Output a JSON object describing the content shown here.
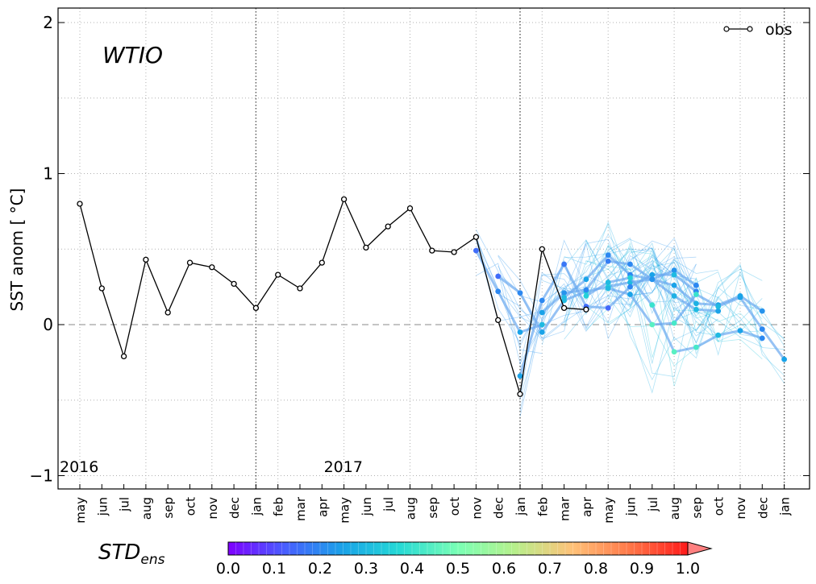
{
  "chart_data": {
    "type": "line",
    "region_label": "WTIO",
    "ylabel": "SST anom [$^\\circ$C]",
    "ylabel_display": "SST anom [ °C]",
    "ylim": [
      -1.1,
      2.1
    ],
    "yticks": [
      -1,
      0,
      1,
      2
    ],
    "ytick_labels": [
      "−1",
      "0",
      "1",
      "2"
    ],
    "x_labels": [
      "may",
      "jun",
      "jul",
      "aug",
      "sep",
      "oct",
      "nov",
      "dec",
      "jan",
      "feb",
      "mar",
      "apr",
      "may",
      "jun",
      "jul",
      "aug",
      "sep",
      "oct",
      "nov",
      "dec",
      "jan",
      "feb",
      "mar",
      "apr",
      "may",
      "jun",
      "jul",
      "aug",
      "sep",
      "oct",
      "nov",
      "dec",
      "jan"
    ],
    "year_labels": [
      {
        "text": "2016",
        "index": 0
      },
      {
        "text": "2017",
        "index": 12
      }
    ],
    "year_boundaries": [
      8,
      20,
      32
    ],
    "grid": true,
    "legend": {
      "label": "obs",
      "position": "top-right"
    },
    "series": [
      {
        "name": "obs",
        "color": "#000000",
        "marker": "open-circle",
        "x": [
          0,
          1,
          2,
          3,
          4,
          5,
          6,
          7,
          8,
          9,
          10,
          11,
          12,
          13,
          14,
          15,
          16,
          17,
          18,
          19,
          20,
          21,
          22,
          23
        ],
        "values": [
          0.8,
          0.24,
          -0.21,
          0.43,
          0.08,
          0.41,
          0.38,
          0.27,
          0.11,
          0.33,
          0.24,
          0.41,
          0.83,
          0.51,
          0.65,
          0.77,
          0.49,
          0.48,
          0.58,
          0.03,
          -0.46,
          0.5,
          0.11,
          0.1
        ]
      }
    ],
    "forecasts": [
      {
        "name": "forecast-nov",
        "start": 18,
        "values": [
          0.49,
          0.22,
          -0.05,
          0.0
        ],
        "std": [
          0.15,
          0.2,
          0.25,
          0.3
        ]
      },
      {
        "name": "forecast-dec",
        "start": 19,
        "values": [
          0.32,
          0.21,
          -0.05,
          0.16,
          0.22,
          0.25,
          0.28,
          0.3,
          0.36,
          0.26
        ],
        "std": [
          0.15,
          0.2,
          0.25,
          0.3,
          0.35,
          0.35,
          0.3,
          0.25,
          0.22,
          0.2
        ]
      },
      {
        "name": "forecast-jan",
        "start": 20,
        "values": [
          -0.34,
          0.16,
          0.4,
          0.12,
          0.11,
          0.25,
          0.33,
          0.33,
          0.22
        ],
        "std": [
          0.25,
          0.2,
          0.17,
          0.15,
          0.14,
          0.2,
          0.25,
          0.3,
          0.2
        ]
      },
      {
        "name": "forecast-feb",
        "start": 21,
        "values": [
          0.08,
          0.21,
          0.23,
          0.42,
          0.4,
          0.3,
          0.19,
          0.1,
          0.09
        ],
        "std": [
          0.25,
          0.22,
          0.2,
          0.18,
          0.2,
          0.22,
          0.28,
          0.3,
          0.25
        ]
      },
      {
        "name": "forecast-mar",
        "start": 22,
        "values": [
          0.18,
          0.3,
          0.46,
          0.33,
          0.3,
          0.26,
          0.14,
          0.13,
          0.19,
          0.09
        ],
        "std": [
          0.3,
          0.25,
          0.2,
          0.2,
          0.22,
          0.25,
          0.28,
          0.25,
          0.25,
          0.22
        ]
      },
      {
        "name": "forecast-apr",
        "start": 23,
        "values": [
          0.19,
          0.28,
          0.31,
          0.13,
          -0.18,
          -0.15,
          -0.07,
          -0.04,
          -0.09
        ],
        "std": [
          0.35,
          0.3,
          0.35,
          0.4,
          0.45,
          0.42,
          0.3,
          0.25,
          0.2
        ]
      },
      {
        "name": "forecast-may",
        "start": 24,
        "values": [
          0.24,
          0.2,
          0.0,
          0.01,
          0.2,
          0.12,
          0.18,
          -0.03,
          -0.23
        ],
        "std": [
          0.3,
          0.25,
          0.45,
          0.42,
          0.4,
          0.3,
          0.25,
          0.2,
          0.25
        ]
      }
    ],
    "colorbar": {
      "label": "STD",
      "label_subscript": "ens",
      "ticks": [
        "0.0",
        "0.1",
        "0.2",
        "0.3",
        "0.4",
        "0.5",
        "0.6",
        "0.7",
        "0.8",
        "0.9",
        "1.0"
      ]
    }
  }
}
